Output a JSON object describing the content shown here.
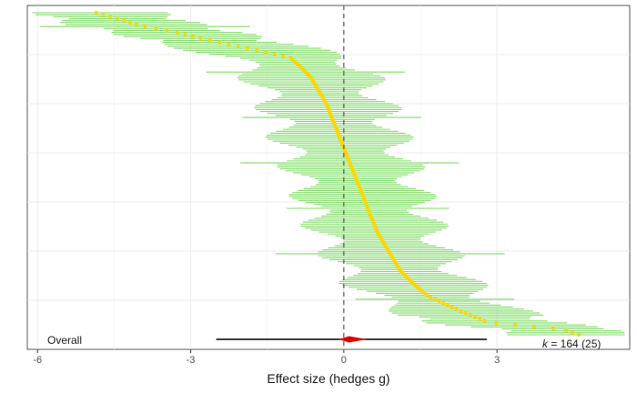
{
  "chart_data": {
    "type": "forest",
    "xlabel": "Effect size (hedges g)",
    "xlim": [
      -6.2,
      5.6
    ],
    "xticks": [
      -6,
      -3,
      0,
      3
    ],
    "tick_labels": [
      "-6",
      "-3",
      "0",
      "3"
    ],
    "grid": true,
    "reference_line": 0,
    "overall": {
      "label": "Overall",
      "estimate": 0.1,
      "ci": [
        -0.1,
        0.45
      ],
      "pi": [
        -2.5,
        2.8
      ]
    },
    "k_annotation": {
      "italic_k": "k",
      "rest": " = 164 (25)"
    },
    "n_studies": 164,
    "effects_quantiles": [
      [
        0.0,
        -4.85
      ],
      [
        0.02,
        -4.4
      ],
      [
        0.04,
        -4.0
      ],
      [
        0.06,
        -3.3
      ],
      [
        0.08,
        -2.8
      ],
      [
        0.1,
        -2.2
      ],
      [
        0.12,
        -1.6
      ],
      [
        0.14,
        -1.05
      ],
      [
        0.16,
        -0.9
      ],
      [
        0.2,
        -0.65
      ],
      [
        0.24,
        -0.5
      ],
      [
        0.28,
        -0.35
      ],
      [
        0.32,
        -0.25
      ],
      [
        0.36,
        -0.15
      ],
      [
        0.4,
        -0.05
      ],
      [
        0.44,
        0.05
      ],
      [
        0.48,
        0.15
      ],
      [
        0.52,
        0.25
      ],
      [
        0.56,
        0.35
      ],
      [
        0.6,
        0.45
      ],
      [
        0.64,
        0.55
      ],
      [
        0.68,
        0.65
      ],
      [
        0.72,
        0.8
      ],
      [
        0.76,
        0.95
      ],
      [
        0.8,
        1.1
      ],
      [
        0.84,
        1.35
      ],
      [
        0.88,
        1.65
      ],
      [
        0.92,
        2.2
      ],
      [
        0.96,
        2.8
      ],
      [
        0.985,
        4.3
      ],
      [
        1.0,
        4.6
      ]
    ],
    "ci_halfwidth_typical": 1.1,
    "colors": {
      "point": "#ffd700",
      "interval": "#7fdb65",
      "overall_diamond": "#e00000",
      "prediction_interval": "#000000",
      "reference_line": "#555555",
      "grid": "#ebebeb"
    }
  }
}
